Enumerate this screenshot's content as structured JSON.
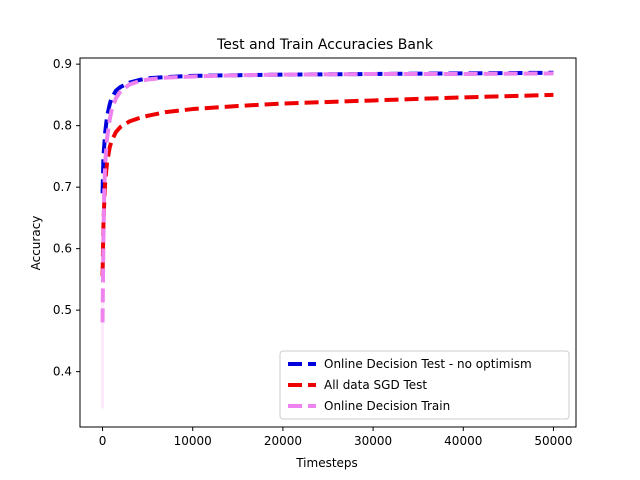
{
  "chart_data": {
    "type": "line",
    "title": "Test and Train Accuracies Bank",
    "xlabel": "Timesteps",
    "ylabel": "Accuracy",
    "xlim": [
      -2500,
      52500
    ],
    "ylim": [
      0.31,
      0.91
    ],
    "xticks": [
      0,
      10000,
      20000,
      30000,
      40000,
      50000
    ],
    "xtick_labels": [
      "0",
      "10000",
      "20000",
      "30000",
      "40000",
      "50000"
    ],
    "yticks": [
      0.4,
      0.5,
      0.6,
      0.7,
      0.8,
      0.9
    ],
    "ytick_labels": [
      "0.4",
      "0.5",
      "0.6",
      "0.7",
      "0.8",
      "0.9"
    ],
    "grid": false,
    "legend_position": "lower-right",
    "series": [
      {
        "name": "Online Decision Test - no optimism",
        "color": "#0000dd",
        "dash": "dashed",
        "x": [
          0,
          50,
          100,
          200,
          300,
          500,
          800,
          1000,
          1500,
          2000,
          3000,
          4000,
          5000,
          7000,
          10000,
          15000,
          20000,
          30000,
          40000,
          50000
        ],
        "y": [
          0.69,
          0.72,
          0.75,
          0.77,
          0.79,
          0.815,
          0.835,
          0.845,
          0.857,
          0.863,
          0.87,
          0.874,
          0.877,
          0.879,
          0.881,
          0.882,
          0.883,
          0.884,
          0.885,
          0.886
        ]
      },
      {
        "name": "All data SGD Test",
        "color": "#ee0000",
        "dash": "dashed",
        "x": [
          0,
          50,
          100,
          200,
          300,
          500,
          800,
          1000,
          1500,
          2000,
          3000,
          4000,
          5000,
          7000,
          10000,
          15000,
          20000,
          30000,
          40000,
          50000
        ],
        "y": [
          0.555,
          0.6,
          0.64,
          0.68,
          0.71,
          0.74,
          0.765,
          0.775,
          0.79,
          0.798,
          0.807,
          0.812,
          0.816,
          0.822,
          0.827,
          0.832,
          0.836,
          0.841,
          0.846,
          0.85
        ]
      },
      {
        "name": "Online Decision Train",
        "color": "#ee82ee",
        "dash": "dashed",
        "x": [
          0,
          50,
          100,
          200,
          300,
          500,
          800,
          1000,
          1500,
          2000,
          3000,
          4000,
          5000,
          7000,
          10000,
          15000,
          20000,
          30000,
          40000,
          50000
        ],
        "y": [
          0.48,
          0.55,
          0.62,
          0.7,
          0.74,
          0.78,
          0.81,
          0.825,
          0.845,
          0.856,
          0.867,
          0.872,
          0.875,
          0.878,
          0.88,
          0.882,
          0.883,
          0.884,
          0.884,
          0.885
        ]
      }
    ]
  }
}
